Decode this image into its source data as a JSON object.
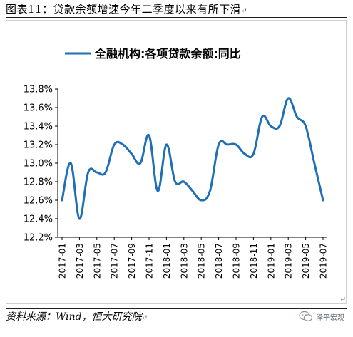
{
  "figure_title": "图表11：贷款余额增速今年二季度以来有所下滑",
  "paragraph_mark": "↵",
  "source_text": "资料来源：Wind，恒大研究院",
  "watermark_text": "泽平宏观",
  "colors": {
    "series": "#1f6fb6",
    "axis": "#000000",
    "frame": "#cfcfcf"
  },
  "chart_data": {
    "type": "line",
    "series": [
      {
        "name": "全融机构:各项贷款余额:同比",
        "color": "#1f6fb6",
        "values": [
          12.6,
          13.0,
          12.4,
          12.9,
          12.9,
          12.9,
          13.2,
          13.2,
          13.1,
          13.0,
          13.3,
          12.7,
          13.2,
          12.8,
          12.8,
          12.7,
          12.6,
          12.7,
          13.2,
          13.2,
          13.2,
          13.1,
          13.1,
          13.5,
          13.4,
          13.4,
          13.7,
          13.5,
          13.4,
          13.0,
          12.6
        ]
      }
    ],
    "x": [
      "2017-01",
      "2017-02",
      "2017-03",
      "2017-04",
      "2017-05",
      "2017-06",
      "2017-07",
      "2017-08",
      "2017-09",
      "2017-10",
      "2017-11",
      "2017-12",
      "2018-01",
      "2018-02",
      "2018-03",
      "2018-04",
      "2018-05",
      "2018-06",
      "2018-07",
      "2018-08",
      "2018-09",
      "2018-10",
      "2018-11",
      "2018-12",
      "2019-01",
      "2019-02",
      "2019-03",
      "2019-04",
      "2019-05",
      "2019-06",
      "2019-07"
    ],
    "xtick_labels": [
      "2017-01",
      "2017-03",
      "2017-05",
      "2017-07",
      "2017-09",
      "2017-11",
      "2018-01",
      "2018-03",
      "2018-05",
      "2018-07",
      "2018-09",
      "2018-11",
      "2019-01",
      "2019-03",
      "2019-05",
      "2019-07"
    ],
    "ytick_labels": [
      "12.2%",
      "12.4%",
      "12.6%",
      "12.8%",
      "13.0%",
      "13.2%",
      "13.4%",
      "13.6%",
      "13.8%"
    ],
    "ylim": [
      12.2,
      13.8
    ],
    "xlabel": "",
    "ylabel": "",
    "legend": "top",
    "grid": false
  }
}
